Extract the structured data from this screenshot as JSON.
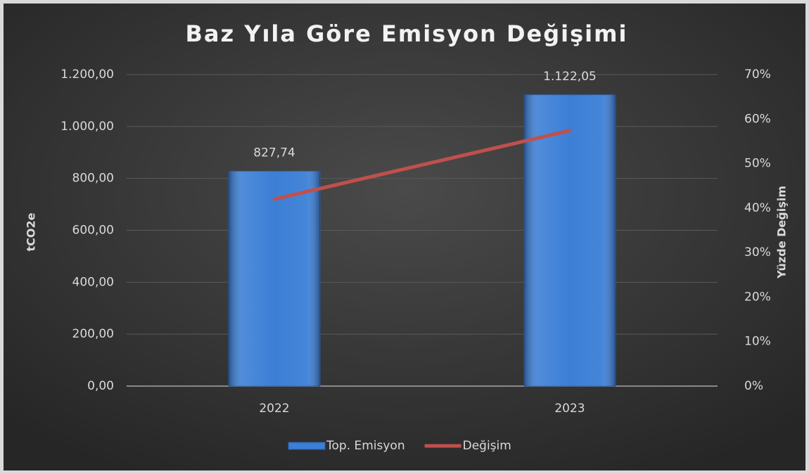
{
  "chart_data": {
    "type": "bar",
    "title": "Baz Yıla Göre Emisyon Değişimi",
    "y_label": "tCO2e",
    "y2_label": "Yüzde Değişim",
    "categories": [
      "2022",
      "2023"
    ],
    "series": [
      {
        "name": "Top. Emisyon",
        "type": "bar",
        "color": "#3c7fd6",
        "values": [
          827.74,
          1122.05
        ],
        "value_labels": [
          "827,74",
          "1.122,05"
        ]
      },
      {
        "name": "Değişim",
        "type": "line",
        "axis": "y2",
        "color": "#c0504d",
        "values": [
          42.0,
          57.4
        ]
      }
    ],
    "ylim": [
      0,
      1200
    ],
    "yticks": [
      {
        "value": 0,
        "label": "0,00"
      },
      {
        "value": 200,
        "label": "200,00"
      },
      {
        "value": 400,
        "label": "400,00"
      },
      {
        "value": 600,
        "label": "600,00"
      },
      {
        "value": 800,
        "label": "800,00"
      },
      {
        "value": 1000,
        "label": "1.000,00"
      },
      {
        "value": 1200,
        "label": "1.200,00"
      }
    ],
    "y2lim": [
      0,
      70
    ],
    "y2ticks": [
      {
        "value": 0,
        "label": "0%"
      },
      {
        "value": 10,
        "label": "10%"
      },
      {
        "value": 20,
        "label": "20%"
      },
      {
        "value": 30,
        "label": "30%"
      },
      {
        "value": 40,
        "label": "40%"
      },
      {
        "value": 50,
        "label": "50%"
      },
      {
        "value": 60,
        "label": "60%"
      },
      {
        "value": 70,
        "label": "70%"
      }
    ],
    "grid": true,
    "legend": "bottom"
  }
}
